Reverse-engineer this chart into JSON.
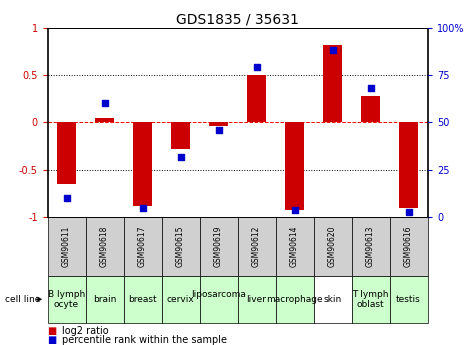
{
  "title": "GDS1835 / 35631",
  "gsm_labels": [
    "GSM90611",
    "GSM90618",
    "GSM90617",
    "GSM90615",
    "GSM90619",
    "GSM90612",
    "GSM90614",
    "GSM90620",
    "GSM90613",
    "GSM90616"
  ],
  "cell_lines": [
    "B lymph\nocyte",
    "brain",
    "breast",
    "cervix",
    "liposarcoma\n ",
    "liver",
    "macrophage",
    "skin",
    "T lymph\noblast",
    "testis"
  ],
  "cell_line_colors": [
    "#ccffcc",
    "#ccffcc",
    "#ccffcc",
    "#ccffcc",
    "#ccffcc",
    "#ccffcc",
    "#ccffcc",
    "#ffffff",
    "#ccffcc",
    "#ccffcc"
  ],
  "log2_ratio": [
    -0.65,
    0.05,
    -0.88,
    -0.28,
    -0.04,
    0.5,
    -0.92,
    0.82,
    0.28,
    -0.9
  ],
  "percentile_rank": [
    10,
    60,
    5,
    32,
    46,
    79,
    4,
    88,
    68,
    3
  ],
  "ylim_left": [
    -1,
    1
  ],
  "ylim_right": [
    0,
    100
  ],
  "yticks_left": [
    -1,
    -0.5,
    0,
    0.5,
    1
  ],
  "yticks_right": [
    0,
    25,
    50,
    75,
    100
  ],
  "bar_color": "#cc0000",
  "dot_color": "#0000cc",
  "bg_color": "#ffffff",
  "title_fontsize": 10,
  "tick_fontsize": 7,
  "gsm_fontsize": 5.5,
  "cl_fontsize": 6.5,
  "legend_fontsize": 7,
  "gsm_bg": "#d0d0d0",
  "cell_line_label_color": "#444444"
}
